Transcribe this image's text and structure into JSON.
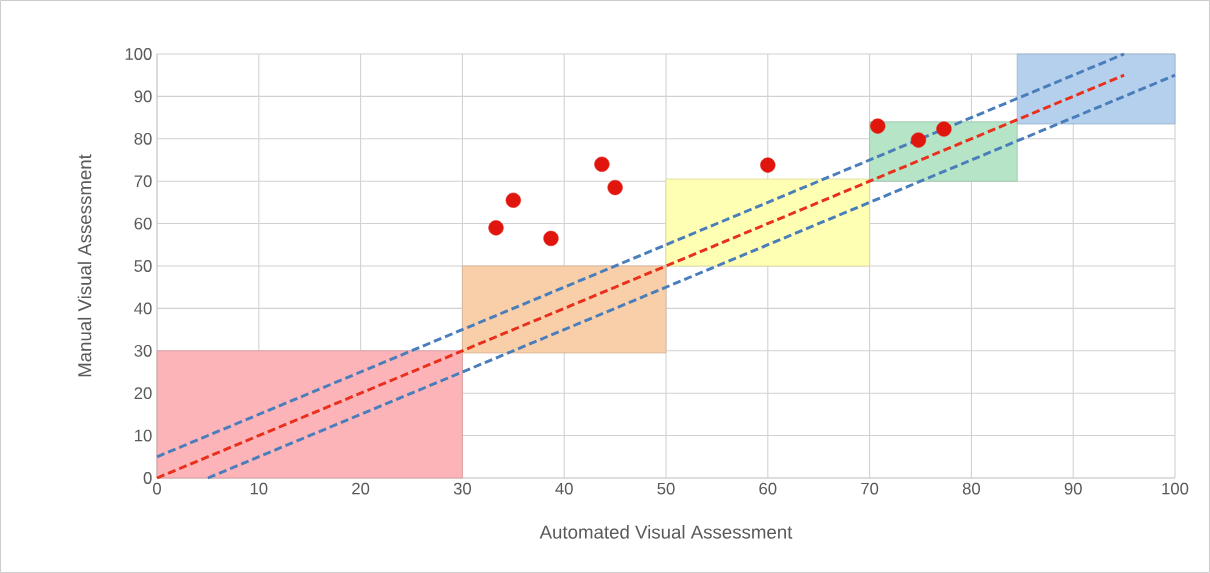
{
  "chart_data": {
    "type": "scatter",
    "xlabel": "Automated Visual Assessment",
    "ylabel": "Manual Visual Assessment",
    "xlim": [
      0,
      100
    ],
    "ylim": [
      0,
      100
    ],
    "xticks": [
      0,
      10,
      20,
      30,
      40,
      50,
      60,
      70,
      80,
      90,
      100
    ],
    "yticks": [
      0,
      10,
      20,
      30,
      40,
      50,
      60,
      70,
      80,
      90,
      100
    ],
    "grid": true,
    "series": [
      {
        "type": "area",
        "color": "#fdb4b8",
        "x": [
          0,
          0,
          30,
          30
        ],
        "values": [
          0,
          30,
          30,
          0
        ]
      },
      {
        "type": "area",
        "color": "#f9cfaa",
        "x": [
          30,
          30,
          50,
          50
        ],
        "values": [
          29.5,
          50,
          50,
          29.5
        ]
      },
      {
        "type": "area",
        "color": "#ffffb4",
        "x": [
          50,
          50,
          70,
          70
        ],
        "values": [
          50,
          70.5,
          70.5,
          50
        ]
      },
      {
        "type": "area",
        "color": "#b6e4c6",
        "x": [
          70,
          70,
          84.5,
          84.5
        ],
        "values": [
          70,
          84,
          84,
          70
        ]
      },
      {
        "type": "area",
        "color": "#b4d0ec",
        "x": [
          84.5,
          84.5,
          100,
          100
        ],
        "values": [
          83.5,
          100,
          100,
          83.5
        ]
      },
      {
        "type": "line",
        "color": "#4a7ebb",
        "line_style": "dashed",
        "marker": "none",
        "x": [
          0,
          95
        ],
        "values": [
          5,
          100
        ]
      },
      {
        "type": "line",
        "color": "#e8301c",
        "line_style": "dashed",
        "marker": "none",
        "x": [
          0,
          95
        ],
        "values": [
          0,
          95
        ]
      },
      {
        "type": "line",
        "color": "#4a7ebb",
        "line_style": "dashed",
        "marker": "none",
        "x": [
          5,
          100
        ],
        "values": [
          0,
          95
        ]
      },
      {
        "color": "#e0160e",
        "marker": "circle",
        "x": [
          33.3,
          35,
          38.7,
          43.7,
          45,
          60,
          70.8,
          74.8,
          77.3
        ],
        "values": [
          59,
          65.5,
          56.5,
          74,
          68.5,
          73.8,
          83,
          79.7,
          82.3
        ]
      }
    ]
  }
}
